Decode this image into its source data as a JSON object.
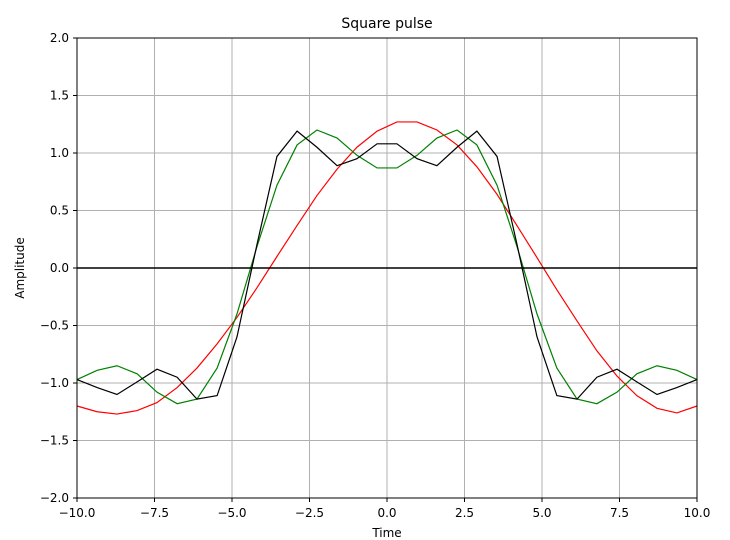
{
  "chart_data": {
    "type": "line",
    "title": "Square pulse",
    "xlabel": "Time",
    "ylabel": "Amplitude",
    "xlim": [
      -10,
      10
    ],
    "ylim": [
      -2,
      2
    ],
    "xticks": [
      -10,
      -7.5,
      -5,
      -2.5,
      0,
      2.5,
      5,
      7.5,
      10
    ],
    "xtick_labels": [
      "−10.0",
      "−7.5",
      "−5.0",
      "−2.5",
      "0.0",
      "2.5",
      "5.0",
      "7.5",
      "10.0"
    ],
    "yticks": [
      -2,
      -1.5,
      -1,
      -0.5,
      0,
      0.5,
      1,
      1.5,
      2
    ],
    "ytick_labels": [
      "−2.0",
      "−1.5",
      "−1.0",
      "−0.5",
      "0.0",
      "0.5",
      "1.0",
      "1.5",
      "2.0"
    ],
    "grid": true,
    "baseline": 0,
    "series": [
      {
        "color": "#ff0000",
        "x": [
          -10,
          -9.35,
          -8.71,
          -8.06,
          -7.42,
          -6.77,
          -6.13,
          -5.48,
          -4.84,
          -4.19,
          -3.55,
          -2.9,
          -2.26,
          -1.61,
          -0.97,
          -0.32,
          0.32,
          0.97,
          1.61,
          2.26,
          2.9,
          3.55,
          4.19,
          4.84,
          5.48,
          6.13,
          6.77,
          7.42,
          8.06,
          8.71,
          9.35,
          10
        ],
        "y": [
          -1.2,
          -1.25,
          -1.27,
          -1.24,
          -1.17,
          -1.04,
          -0.87,
          -0.66,
          -0.43,
          -0.17,
          0.1,
          0.37,
          0.63,
          0.86,
          1.05,
          1.19,
          1.27,
          1.27,
          1.2,
          1.07,
          0.88,
          0.64,
          0.37,
          0.09,
          -0.19,
          -0.46,
          -0.72,
          -0.94,
          -1.11,
          -1.22,
          -1.26,
          -1.2
        ]
      },
      {
        "color": "#008000",
        "x": [
          -10,
          -9.35,
          -8.71,
          -8.06,
          -7.42,
          -6.77,
          -6.13,
          -5.48,
          -4.84,
          -4.19,
          -3.55,
          -2.9,
          -2.26,
          -1.61,
          -0.97,
          -0.32,
          0.32,
          0.97,
          1.61,
          2.26,
          2.9,
          3.55,
          4.19,
          4.84,
          5.48,
          6.13,
          6.77,
          7.42,
          8.06,
          8.71,
          9.35,
          10
        ],
        "y": [
          -0.97,
          -0.89,
          -0.85,
          -0.92,
          -1.08,
          -1.18,
          -1.14,
          -0.87,
          -0.4,
          0.19,
          0.72,
          1.07,
          1.2,
          1.13,
          0.98,
          0.87,
          0.87,
          0.98,
          1.13,
          1.2,
          1.07,
          0.72,
          0.19,
          -0.4,
          -0.87,
          -1.14,
          -1.18,
          -1.08,
          -0.92,
          -0.85,
          -0.89,
          -0.97
        ]
      },
      {
        "color": "#000000",
        "x": [
          -10,
          -9.35,
          -8.71,
          -8.06,
          -7.42,
          -6.77,
          -6.13,
          -5.48,
          -4.84,
          -4.19,
          -3.55,
          -2.9,
          -2.26,
          -1.61,
          -0.97,
          -0.32,
          0.32,
          0.97,
          1.61,
          2.26,
          2.9,
          3.55,
          4.19,
          4.84,
          5.48,
          6.13,
          6.77,
          7.42,
          8.06,
          8.71,
          9.35,
          10
        ],
        "y": [
          -0.97,
          -1.04,
          -1.1,
          -0.99,
          -0.88,
          -0.95,
          -1.14,
          -1.11,
          -0.6,
          0.21,
          0.97,
          1.19,
          1.05,
          0.89,
          0.95,
          1.08,
          1.08,
          0.95,
          0.89,
          1.05,
          1.19,
          0.97,
          0.21,
          -0.6,
          -1.11,
          -1.14,
          -0.95,
          -0.88,
          -0.99,
          -1.1,
          -1.04,
          -0.97
        ]
      }
    ]
  }
}
